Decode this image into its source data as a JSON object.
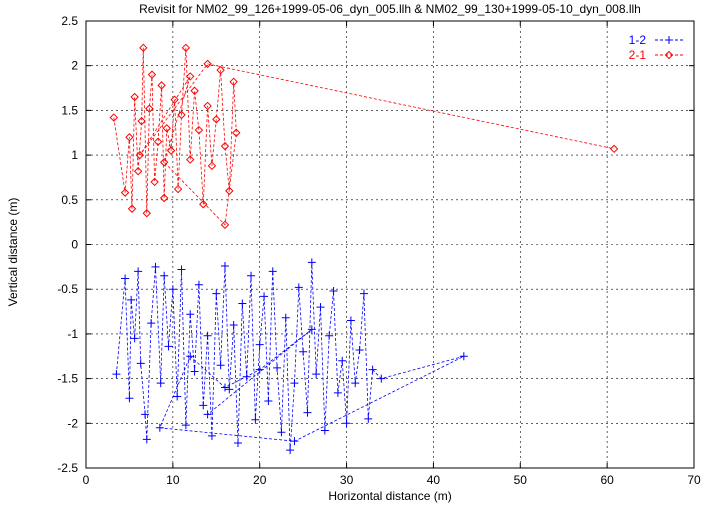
{
  "chart_data": {
    "type": "scatter",
    "title": "Revisit for NM02_99_126+1999-05-06_dyn_005.llh & NM02_99_130+1999-05-10_dyn_008.llh",
    "xlabel": "Horizontal distance (m)",
    "ylabel": "Vertical distance (m)",
    "xlim": [
      0,
      70
    ],
    "ylim": [
      -2.5,
      2.5
    ],
    "x_ticks": [
      0,
      10,
      20,
      30,
      40,
      50,
      60,
      70
    ],
    "y_ticks": [
      -2.5,
      -2,
      -1.5,
      -1,
      -0.5,
      0,
      0.5,
      1,
      1.5,
      2,
      2.5
    ],
    "grid": true,
    "legend_position": "top-right",
    "series": [
      {
        "name": "1-2",
        "color": "#0000ff",
        "marker": "plus",
        "line": "dashed",
        "points": [
          [
            3.5,
            -1.45
          ],
          [
            4.5,
            -0.38
          ],
          [
            5.0,
            -1.72
          ],
          [
            5.2,
            -0.62
          ],
          [
            5.6,
            -1.05
          ],
          [
            6.0,
            -0.3
          ],
          [
            6.3,
            -1.33
          ],
          [
            6.8,
            -1.9
          ],
          [
            7.0,
            -2.18
          ],
          [
            7.5,
            -0.88
          ],
          [
            8.0,
            -0.25
          ],
          [
            8.6,
            -1.55
          ],
          [
            9.0,
            -0.35
          ],
          [
            9.5,
            -1.14
          ],
          [
            10.0,
            -0.5
          ],
          [
            10.5,
            -1.7
          ],
          [
            11.0,
            -0.28
          ],
          [
            11.5,
            -2.02
          ],
          [
            12.0,
            -0.78
          ],
          [
            12.5,
            -1.42
          ],
          [
            13.0,
            -0.45
          ],
          [
            13.5,
            -1.8
          ],
          [
            14.0,
            -1.02
          ],
          [
            14.5,
            -2.14
          ],
          [
            15.0,
            -0.55
          ],
          [
            15.5,
            -1.35
          ],
          [
            16.0,
            -0.24
          ],
          [
            16.5,
            -1.62
          ],
          [
            17.0,
            -0.9
          ],
          [
            17.5,
            -2.22
          ],
          [
            18.0,
            -0.66
          ],
          [
            18.5,
            -1.48
          ],
          [
            19.0,
            -0.35
          ],
          [
            19.5,
            -1.96
          ],
          [
            20.0,
            -1.12
          ],
          [
            20.5,
            -0.58
          ],
          [
            21.0,
            -1.75
          ],
          [
            21.5,
            -0.3
          ],
          [
            22.0,
            -1.38
          ],
          [
            22.5,
            -2.1
          ],
          [
            23.0,
            -0.82
          ],
          [
            23.5,
            -2.3
          ],
          [
            24.0,
            -1.55
          ],
          [
            24.5,
            -0.48
          ],
          [
            25.0,
            -1.2
          ],
          [
            25.5,
            -1.88
          ],
          [
            26.0,
            -0.2
          ],
          [
            26.5,
            -1.45
          ],
          [
            27.0,
            -0.7
          ],
          [
            27.5,
            -2.08
          ],
          [
            28.0,
            -1.02
          ],
          [
            28.5,
            -0.52
          ],
          [
            29.0,
            -1.66
          ],
          [
            29.5,
            -1.3
          ],
          [
            30.0,
            -2.0
          ],
          [
            30.5,
            -0.85
          ],
          [
            31.0,
            -1.55
          ],
          [
            31.5,
            -1.18
          ],
          [
            32.0,
            -0.55
          ],
          [
            32.5,
            -1.95
          ],
          [
            33.0,
            -1.4
          ],
          [
            34.0,
            -1.5
          ],
          [
            43.5,
            -1.25
          ],
          [
            24.0,
            -2.2
          ],
          [
            8.5,
            -2.05
          ],
          [
            12.0,
            -1.25
          ],
          [
            16.0,
            -1.6
          ],
          [
            20.0,
            -1.4
          ],
          [
            26.0,
            -0.95
          ],
          [
            14.0,
            -1.9
          ]
        ]
      },
      {
        "name": "2-1",
        "color": "#ff0000",
        "marker": "diamond",
        "line": "dashed",
        "points": [
          [
            3.2,
            1.42
          ],
          [
            4.5,
            0.58
          ],
          [
            5.0,
            1.2
          ],
          [
            5.3,
            0.4
          ],
          [
            5.6,
            1.65
          ],
          [
            6.0,
            0.82
          ],
          [
            6.4,
            1.38
          ],
          [
            6.6,
            2.2
          ],
          [
            7.0,
            0.35
          ],
          [
            7.3,
            1.52
          ],
          [
            7.6,
            1.9
          ],
          [
            7.9,
            0.7
          ],
          [
            8.3,
            1.15
          ],
          [
            8.7,
            1.78
          ],
          [
            9.0,
            0.52
          ],
          [
            9.3,
            1.3
          ],
          [
            9.8,
            1.05
          ],
          [
            10.2,
            1.62
          ],
          [
            10.6,
            0.62
          ],
          [
            11.0,
            1.45
          ],
          [
            11.5,
            2.2
          ],
          [
            12.0,
            0.95
          ],
          [
            12.5,
            1.72
          ],
          [
            13.0,
            1.28
          ],
          [
            13.5,
            0.45
          ],
          [
            14.0,
            1.55
          ],
          [
            14.5,
            0.88
          ],
          [
            15.0,
            1.4
          ],
          [
            15.5,
            1.95
          ],
          [
            16.0,
            1.1
          ],
          [
            16.5,
            0.6
          ],
          [
            17.0,
            1.82
          ],
          [
            17.3,
            1.25
          ],
          [
            16.0,
            0.22
          ],
          [
            9.0,
            0.92
          ],
          [
            12.0,
            1.88
          ],
          [
            6.2,
            1.0
          ],
          [
            14.0,
            2.02
          ],
          [
            60.8,
            1.07
          ]
        ]
      }
    ]
  }
}
